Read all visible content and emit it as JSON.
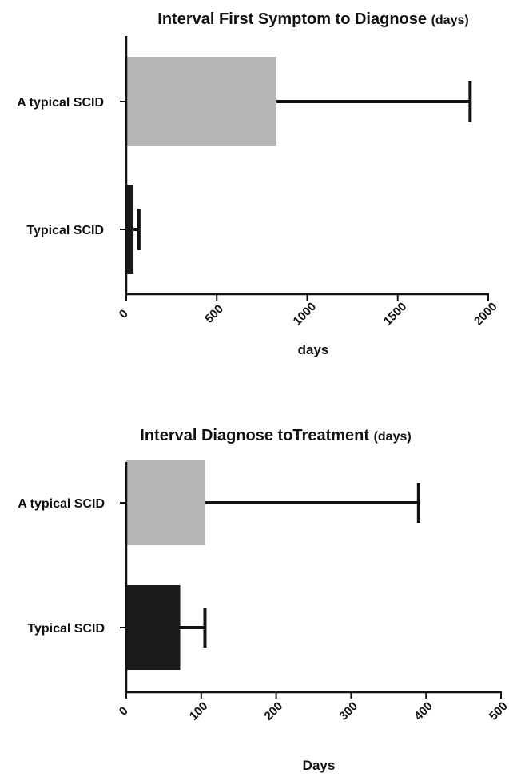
{
  "chart_data": [
    {
      "type": "bar",
      "orientation": "horizontal",
      "title": "Interval First Symptom to Diagnose",
      "title_unit": "(days)",
      "xlabel": "days",
      "categories": [
        "A typical SCID",
        "Typical SCID"
      ],
      "values": [
        830,
        40
      ],
      "error_upper": [
        1900,
        70
      ],
      "colors": [
        "#b5b5b5",
        "#1a1a1a"
      ],
      "xlim": [
        0,
        2000
      ],
      "xticks": [
        0,
        500,
        1000,
        1500,
        2000
      ],
      "xtick_labels": [
        "0",
        "500",
        "1000",
        "1500",
        "2000"
      ],
      "grid": false,
      "legend": "none"
    },
    {
      "type": "bar",
      "orientation": "horizontal",
      "title": "Interval Diagnose toTreatment",
      "title_unit": "(days)",
      "xlabel": "Days",
      "categories": [
        "A typical SCID",
        "Typical SCID"
      ],
      "values": [
        105,
        72
      ],
      "error_upper": [
        390,
        105
      ],
      "colors": [
        "#b5b5b5",
        "#1a1a1a"
      ],
      "xlim": [
        0,
        500
      ],
      "xticks": [
        0,
        100,
        200,
        300,
        400,
        500
      ],
      "xtick_labels": [
        "0",
        "100",
        "200",
        "300",
        "400",
        "500"
      ],
      "grid": false,
      "legend": "none"
    }
  ]
}
